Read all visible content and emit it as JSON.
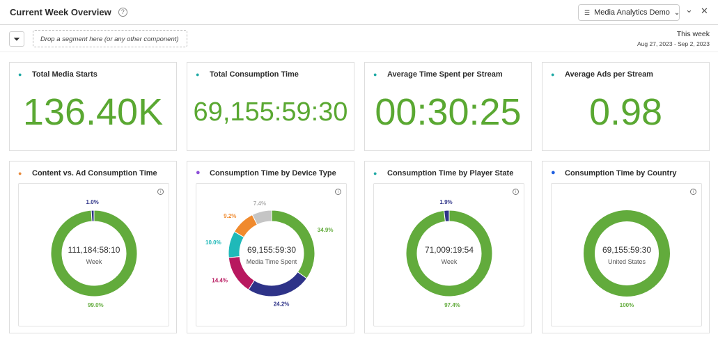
{
  "header": {
    "title": "Current Week Overview",
    "help_icon": "?",
    "report_suite": "Media Analytics Demo",
    "collapse": "⌄",
    "close": "✕"
  },
  "toolbar": {
    "drop_zone": "Drop a segment here (or any other component)",
    "date_label": "This week",
    "date_range": "Aug 27, 2023 - Sep 2, 2023"
  },
  "kpis": [
    {
      "title": "Total Media Starts",
      "value": "136.40K",
      "icon": "lock-icon",
      "icon_color": "#1fa9a5"
    },
    {
      "title": "Total Consumption Time",
      "value": "69,155:59:30",
      "icon": "lock-icon",
      "icon_color": "#1fa9a5"
    },
    {
      "title": "Average Time Spent per Stream",
      "value": "00:30:25",
      "icon": "lock-icon",
      "icon_color": "#1fa9a5"
    },
    {
      "title": "Average Ads per Stream",
      "value": "0.98",
      "icon": "lock-icon",
      "icon_color": "#1fa9a5"
    }
  ],
  "chart_data": [
    {
      "type": "pie",
      "title": "Content vs. Ad Consumption Time",
      "icon": "lock-icon",
      "icon_color": "#e8893a",
      "center_value": "111,184:58:10",
      "center_label": "Week",
      "values": [
        99.0,
        1.0
      ],
      "labels": [
        "99.0%",
        "1.0%"
      ],
      "colors": [
        "#62ab3c",
        "#2e3388"
      ]
    },
    {
      "type": "pie",
      "title": "Consumption Time by Device Type",
      "icon": "dot-icon",
      "icon_color": "#8d4fd8",
      "center_value": "69,155:59:30",
      "center_label": "Media Time Spent",
      "values": [
        34.9,
        24.2,
        14.4,
        10.0,
        9.2,
        7.4
      ],
      "labels": [
        "34.9%",
        "24.2%",
        "14.4%",
        "10.0%",
        "9.2%",
        "7.4%"
      ],
      "colors": [
        "#62ab3c",
        "#2e3388",
        "#b8185f",
        "#1fb9b9",
        "#f08a2e",
        "#c5c5c5"
      ]
    },
    {
      "type": "pie",
      "title": "Consumption Time by Player State",
      "icon": "lock-icon",
      "icon_color": "#1fa9a5",
      "center_value": "71,009:19:54",
      "center_label": "Week",
      "values": [
        97.4,
        1.9
      ],
      "labels": [
        "97.4%",
        "1.9%"
      ],
      "colors": [
        "#62ab3c",
        "#2e3388"
      ]
    },
    {
      "type": "pie",
      "title": "Consumption Time by Country",
      "icon": "dot-icon",
      "icon_color": "#1f5fe0",
      "center_value": "69,155:59:30",
      "center_label": "United States",
      "values": [
        100
      ],
      "labels": [
        "100%"
      ],
      "colors": [
        "#62ab3c"
      ]
    }
  ]
}
